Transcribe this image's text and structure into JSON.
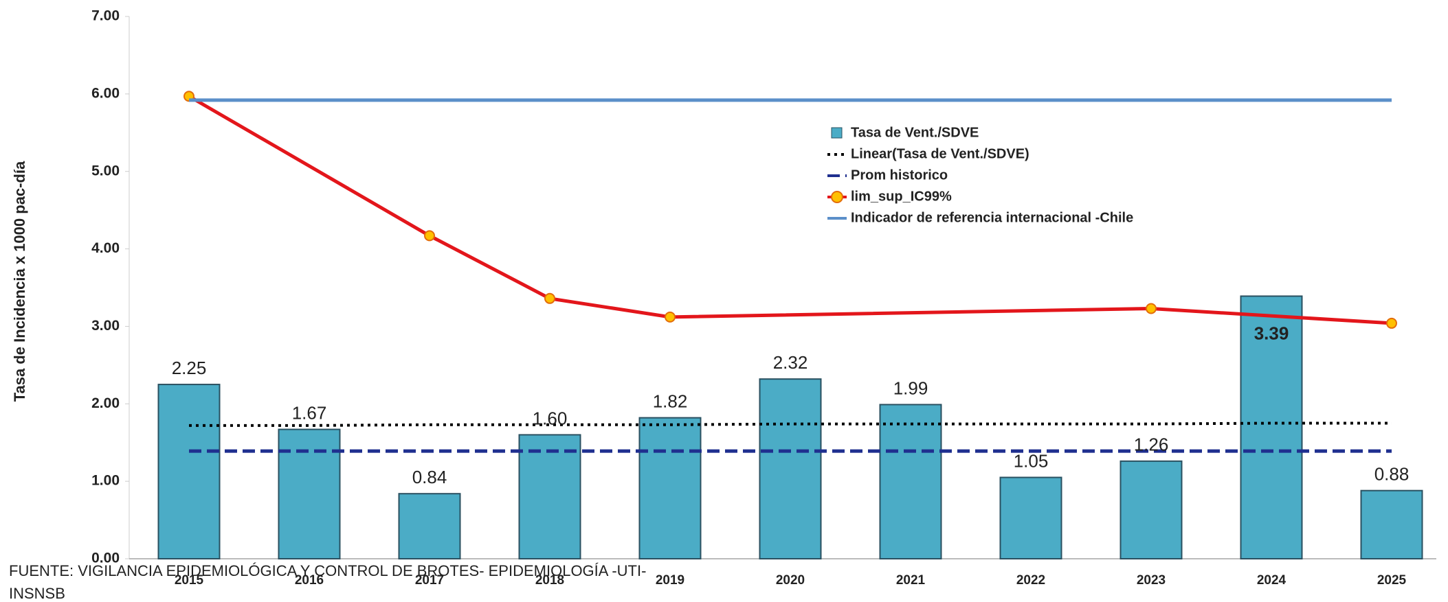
{
  "chart_data": {
    "type": "bar",
    "y_label": "Tasa de Incidencia x 1000 pac-día",
    "categories": [
      "2015",
      "2016",
      "2017",
      "2018",
      "2019",
      "2020",
      "2021",
      "2022",
      "2023",
      "2024",
      "2025"
    ],
    "ylim": [
      0,
      7
    ],
    "yticks": [
      {
        "value": 0,
        "label": "0.00"
      },
      {
        "value": 1,
        "label": "1.00"
      },
      {
        "value": 2,
        "label": "2.00"
      },
      {
        "value": 3,
        "label": "3.00"
      },
      {
        "value": 4,
        "label": "4.00"
      },
      {
        "value": 5,
        "label": "5.00"
      },
      {
        "value": 6,
        "label": "6.00"
      },
      {
        "value": 7,
        "label": "7.00"
      }
    ],
    "span_gaps": true,
    "series": [
      {
        "name": "Tasa de Vent./SDVE",
        "type": "bar",
        "color": "#4bacc6",
        "values": [
          2.25,
          1.67,
          0.84,
          1.6,
          1.82,
          2.32,
          1.99,
          1.05,
          1.26,
          3.39,
          0.88
        ],
        "value_labels": [
          "2.25",
          "1.67",
          "0.84",
          "1.60",
          "1.82",
          "2.32",
          "1.99",
          "1.05",
          "1.26",
          "3.39",
          "0.88"
        ]
      },
      {
        "name": "Linear(Tasa de Vent./SDVE)",
        "type": "line",
        "style": "dotted",
        "color": "#000000",
        "values": [
          1.72,
          1.72,
          1.73,
          1.73,
          1.73,
          1.74,
          1.74,
          1.74,
          1.74,
          1.75,
          1.75
        ]
      },
      {
        "name": "Prom historico",
        "type": "line",
        "style": "dashed",
        "color": "#1f2f8f",
        "values": [
          1.39,
          1.39,
          1.39,
          1.39,
          1.39,
          1.39,
          1.39,
          1.39,
          1.39,
          1.39,
          1.39
        ]
      },
      {
        "name": "lim_sup_IC99%",
        "type": "line",
        "style": "solid",
        "marker": true,
        "color": "#e3161b",
        "values": [
          5.97,
          null,
          4.17,
          3.36,
          3.12,
          null,
          null,
          null,
          3.23,
          null,
          3.04
        ]
      },
      {
        "name": "Indicador de referencia internacional -Chile",
        "type": "line",
        "style": "solid",
        "color": "#5b8fc9",
        "values": [
          5.92,
          5.92,
          5.92,
          5.92,
          5.92,
          5.92,
          5.92,
          5.92,
          5.92,
          5.92,
          5.92
        ]
      }
    ],
    "source": [
      "FUENTE: VIGILANCIA EPIDEMIOLÓGICA Y CONTROL DE BROTES- EPIDEMIOLOGÍA -UTI-",
      "INSNSB"
    ]
  }
}
